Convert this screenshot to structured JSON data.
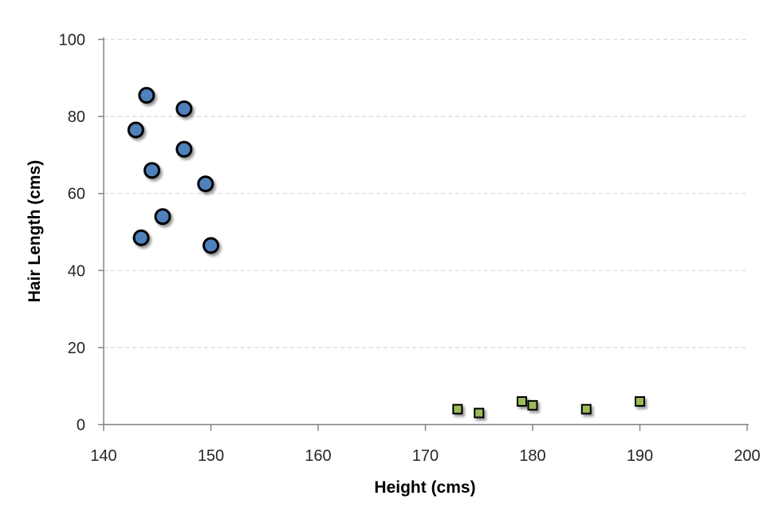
{
  "chart_data": {
    "type": "scatter",
    "title": "",
    "xlabel": "Height (cms)",
    "ylabel": "Hair Length (cms)",
    "xlim": [
      140,
      200
    ],
    "ylim": [
      0,
      100
    ],
    "xticks": [
      140,
      150,
      160,
      170,
      180,
      190,
      200
    ],
    "yticks": [
      0,
      20,
      40,
      60,
      80,
      100
    ],
    "grid": "horizontal-dashed",
    "legend_position": "none",
    "series": [
      {
        "marker": "circle",
        "fill": "#4F81BD",
        "stroke": "#000000",
        "points": [
          [
            144,
            85.5
          ],
          [
            147.5,
            82
          ],
          [
            143,
            76.5
          ],
          [
            147.5,
            71.5
          ],
          [
            144.5,
            66
          ],
          [
            149.5,
            62.5
          ],
          [
            145.5,
            54
          ],
          [
            143.5,
            48.5
          ],
          [
            150,
            46.5
          ]
        ]
      },
      {
        "marker": "square",
        "fill": "#9BBB59",
        "stroke": "#000000",
        "points": [
          [
            173,
            4
          ],
          [
            175,
            3
          ],
          [
            179,
            6
          ],
          [
            180,
            5
          ],
          [
            185,
            4
          ],
          [
            190,
            6
          ]
        ]
      }
    ]
  },
  "colors": {
    "background": "#FFFFFF",
    "axis_line": "#7F7F7F",
    "gridline": "#D9D9D9",
    "tick_label": "#262626",
    "axis_title": "#000000"
  }
}
